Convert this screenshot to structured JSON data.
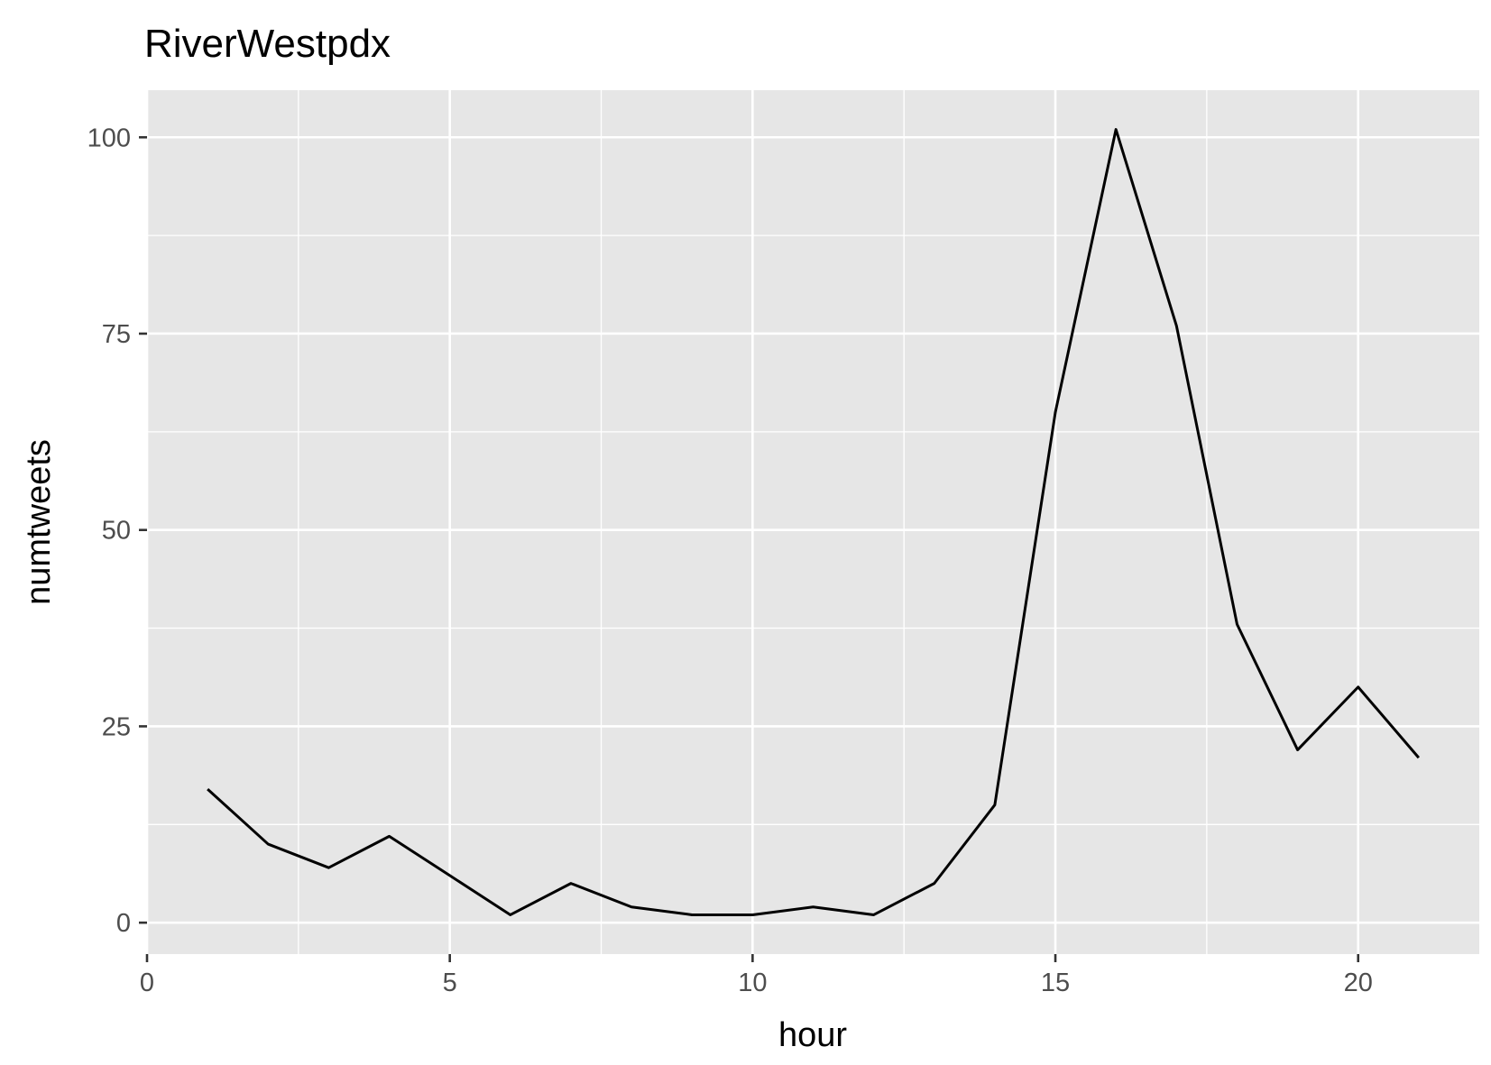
{
  "chart_data": {
    "type": "line",
    "title": "RiverWestpdx",
    "xlabel": "hour",
    "ylabel": "numtweets",
    "xlim": [
      0,
      22
    ],
    "ylim": [
      -4,
      106
    ],
    "x_ticks": [
      0,
      5,
      10,
      15,
      20
    ],
    "y_ticks": [
      0,
      25,
      50,
      75,
      100
    ],
    "x_minor": [
      2.5,
      7.5,
      12.5,
      17.5
    ],
    "y_minor": [
      12.5,
      37.5,
      62.5,
      87.5
    ],
    "grid": true,
    "legend": "none",
    "colors": {
      "panel": "#e6e6e6",
      "grid": "#ffffff",
      "line": "#000000",
      "tick": "#333333"
    },
    "series": [
      {
        "x": [
          1,
          2,
          3,
          4,
          5,
          6,
          7,
          8,
          9,
          10,
          11,
          12,
          13,
          14,
          15,
          16,
          17,
          18,
          19,
          20,
          21
        ],
        "values": [
          17,
          10,
          7,
          11,
          6,
          1,
          5,
          2,
          1,
          1,
          2,
          1,
          5,
          15,
          65,
          101,
          76,
          38,
          22,
          30,
          21
        ]
      }
    ]
  }
}
